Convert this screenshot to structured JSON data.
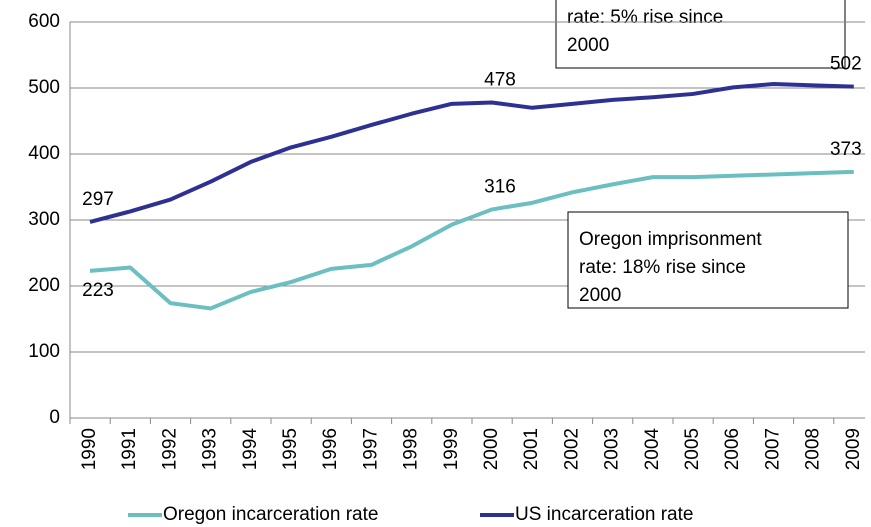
{
  "chart_data": {
    "type": "line",
    "categories": [
      "1990",
      "1991",
      "1992",
      "1993",
      "1994",
      "1995",
      "1996",
      "1997",
      "1998",
      "1999",
      "2000",
      "2001",
      "2002",
      "2003",
      "2004",
      "2005",
      "2006",
      "2007",
      "2008",
      "2009"
    ],
    "series": [
      {
        "name": "Oregon incarceration rate",
        "color": "#6bbfc0",
        "values": [
          223,
          228,
          174,
          166,
          191,
          206,
          226,
          232,
          260,
          293,
          316,
          326,
          342,
          354,
          365,
          365,
          367,
          369,
          371,
          373
        ]
      },
      {
        "name": "US incarceration rate",
        "color": "#2e3192",
        "values": [
          297,
          313,
          331,
          358,
          388,
          410,
          426,
          444,
          461,
          476,
          478,
          470,
          476,
          482,
          486,
          491,
          501,
          506,
          504,
          502
        ]
      }
    ],
    "ylim": [
      0,
      600
    ],
    "yticks": [
      0,
      100,
      200,
      300,
      400,
      500,
      600
    ],
    "grid": true,
    "legend": "bottom",
    "annotations": [
      {
        "lines": [
          "rate: 5% rise since",
          "2000"
        ]
      },
      {
        "lines": [
          "Oregon imprisonment",
          "rate: 18% rise since",
          "2000"
        ]
      }
    ]
  }
}
